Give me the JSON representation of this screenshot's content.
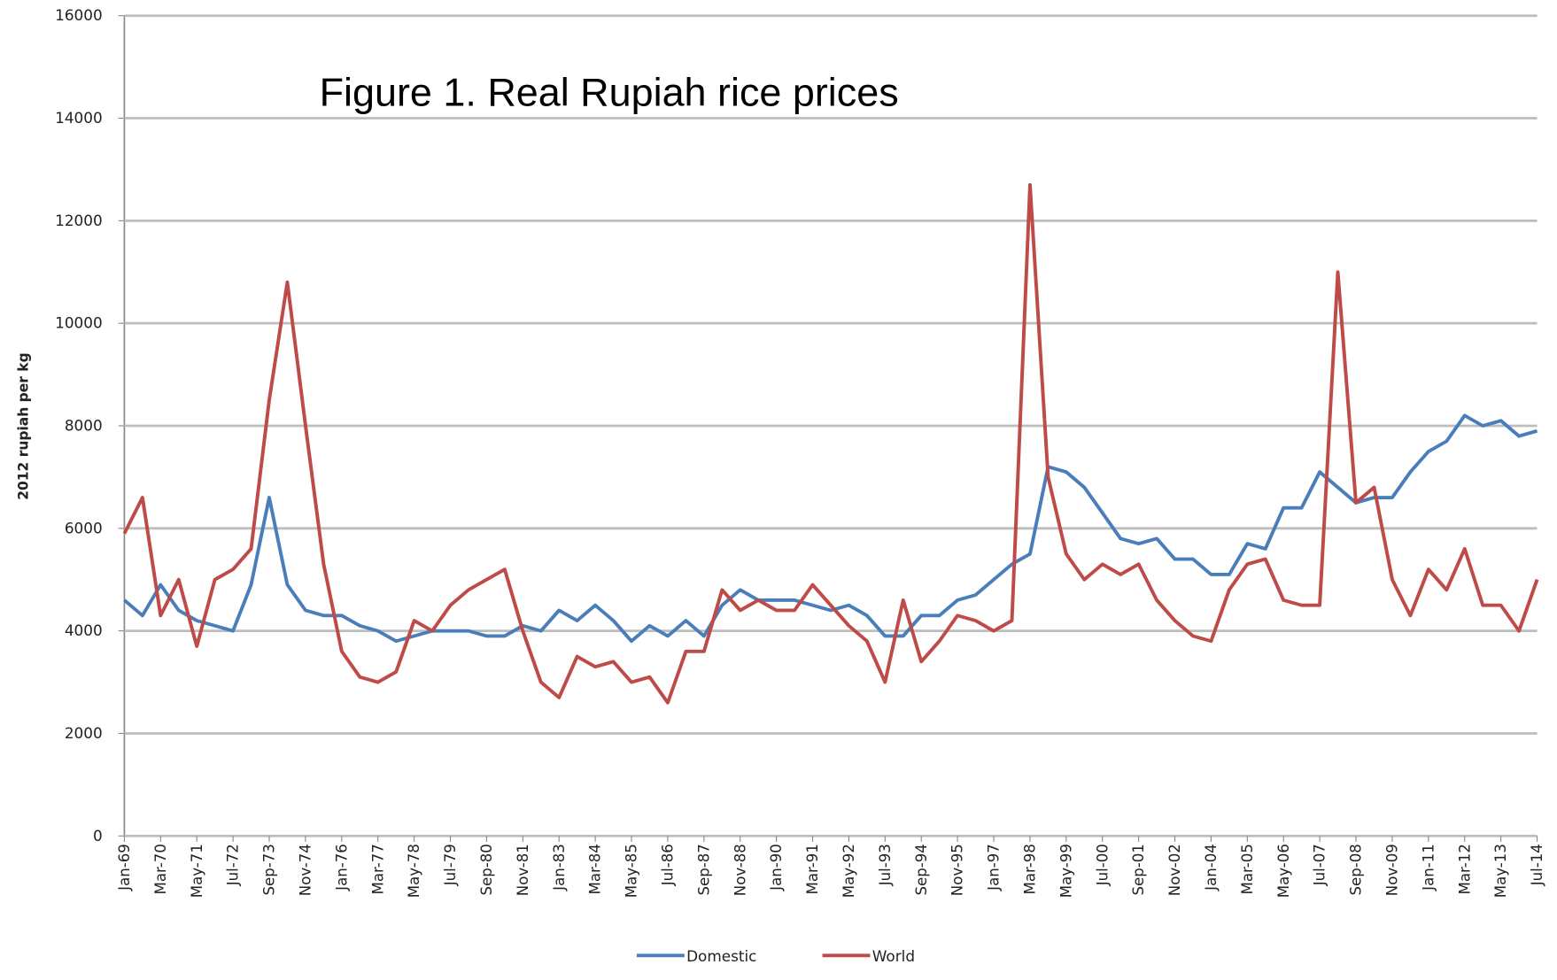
{
  "chart_data": {
    "type": "line",
    "title": "Figure 1. Real Rupiah rice prices",
    "y_label": "2012 rupiah per kg",
    "categories": [
      "Jan-69",
      null,
      "Mar-70",
      null,
      "May-71",
      null,
      "Jul-72",
      null,
      "Sep-73",
      null,
      "Nov-74",
      null,
      "Jan-76",
      null,
      "Mar-77",
      null,
      "May-78",
      null,
      "Jul-79",
      null,
      "Sep-80",
      null,
      "Nov-81",
      null,
      "Jan-83",
      null,
      "Mar-84",
      null,
      "May-85",
      null,
      "Jul-86",
      null,
      "Sep-87",
      null,
      "Nov-88",
      null,
      "Jan-90",
      null,
      "Mar-91",
      null,
      "May-92",
      null,
      "Jul-93",
      null,
      "Sep-94",
      null,
      "Nov-95",
      null,
      "Jan-97",
      null,
      "Mar-98",
      null,
      "May-99",
      null,
      "Jul-00",
      null,
      "Sep-01",
      null,
      "Nov-02",
      null,
      "Jan-04",
      null,
      "Mar-05",
      null,
      "May-06",
      null,
      "Jul-07",
      null,
      "Sep-08",
      null,
      "Nov-09",
      null,
      "Jan-11",
      null,
      "Mar-12",
      null,
      "May-13",
      null,
      "Jul-14"
    ],
    "series": [
      {
        "name": "Domestic",
        "color": "#4a7ebb",
        "values": [
          4600,
          4300,
          4900,
          4400,
          4200,
          4100,
          4000,
          4900,
          6600,
          4900,
          4400,
          4300,
          4300,
          4100,
          4000,
          3800,
          3900,
          4000,
          4000,
          4000,
          3900,
          3900,
          4100,
          4000,
          4400,
          4200,
          4500,
          4200,
          3800,
          4100,
          3900,
          4200,
          3900,
          4500,
          4800,
          4600,
          4600,
          4600,
          4500,
          4400,
          4500,
          4300,
          3900,
          3900,
          4300,
          4300,
          4600,
          4700,
          5000,
          5300,
          5500,
          7200,
          7100,
          6800,
          6300,
          5800,
          5700,
          5800,
          5400,
          5400,
          5100,
          5100,
          5700,
          5600,
          6400,
          6400,
          7100,
          6800,
          6500,
          6600,
          6600,
          7100,
          7500,
          7700,
          8200,
          8000,
          8100,
          7800,
          7900
        ]
      },
      {
        "name": "World",
        "color": "#be4b48",
        "values": [
          5900,
          6600,
          4300,
          5000,
          3700,
          5000,
          5200,
          5600,
          8500,
          10800,
          8000,
          5300,
          3600,
          3100,
          3000,
          3200,
          4200,
          4000,
          4500,
          4800,
          5000,
          5200,
          4000,
          3000,
          2700,
          3500,
          3300,
          3400,
          3000,
          3100,
          2600,
          3600,
          3600,
          4800,
          4400,
          4600,
          4400,
          4400,
          4900,
          4500,
          4100,
          3800,
          3000,
          4600,
          3400,
          3800,
          4300,
          4200,
          4000,
          4200,
          12700,
          7000,
          5500,
          5000,
          5300,
          5100,
          5300,
          4600,
          4200,
          3900,
          3800,
          4800,
          5300,
          5400,
          4600,
          4500,
          4500,
          11000,
          6500,
          6800,
          5000,
          4300,
          5200,
          4800,
          5600,
          4500,
          4500,
          4000,
          5000
        ]
      }
    ],
    "ylim": [
      0,
      16000
    ],
    "yticks": [
      0,
      2000,
      4000,
      6000,
      8000,
      10000,
      12000,
      14000,
      16000
    ],
    "grid": true,
    "legend": "bottom"
  }
}
